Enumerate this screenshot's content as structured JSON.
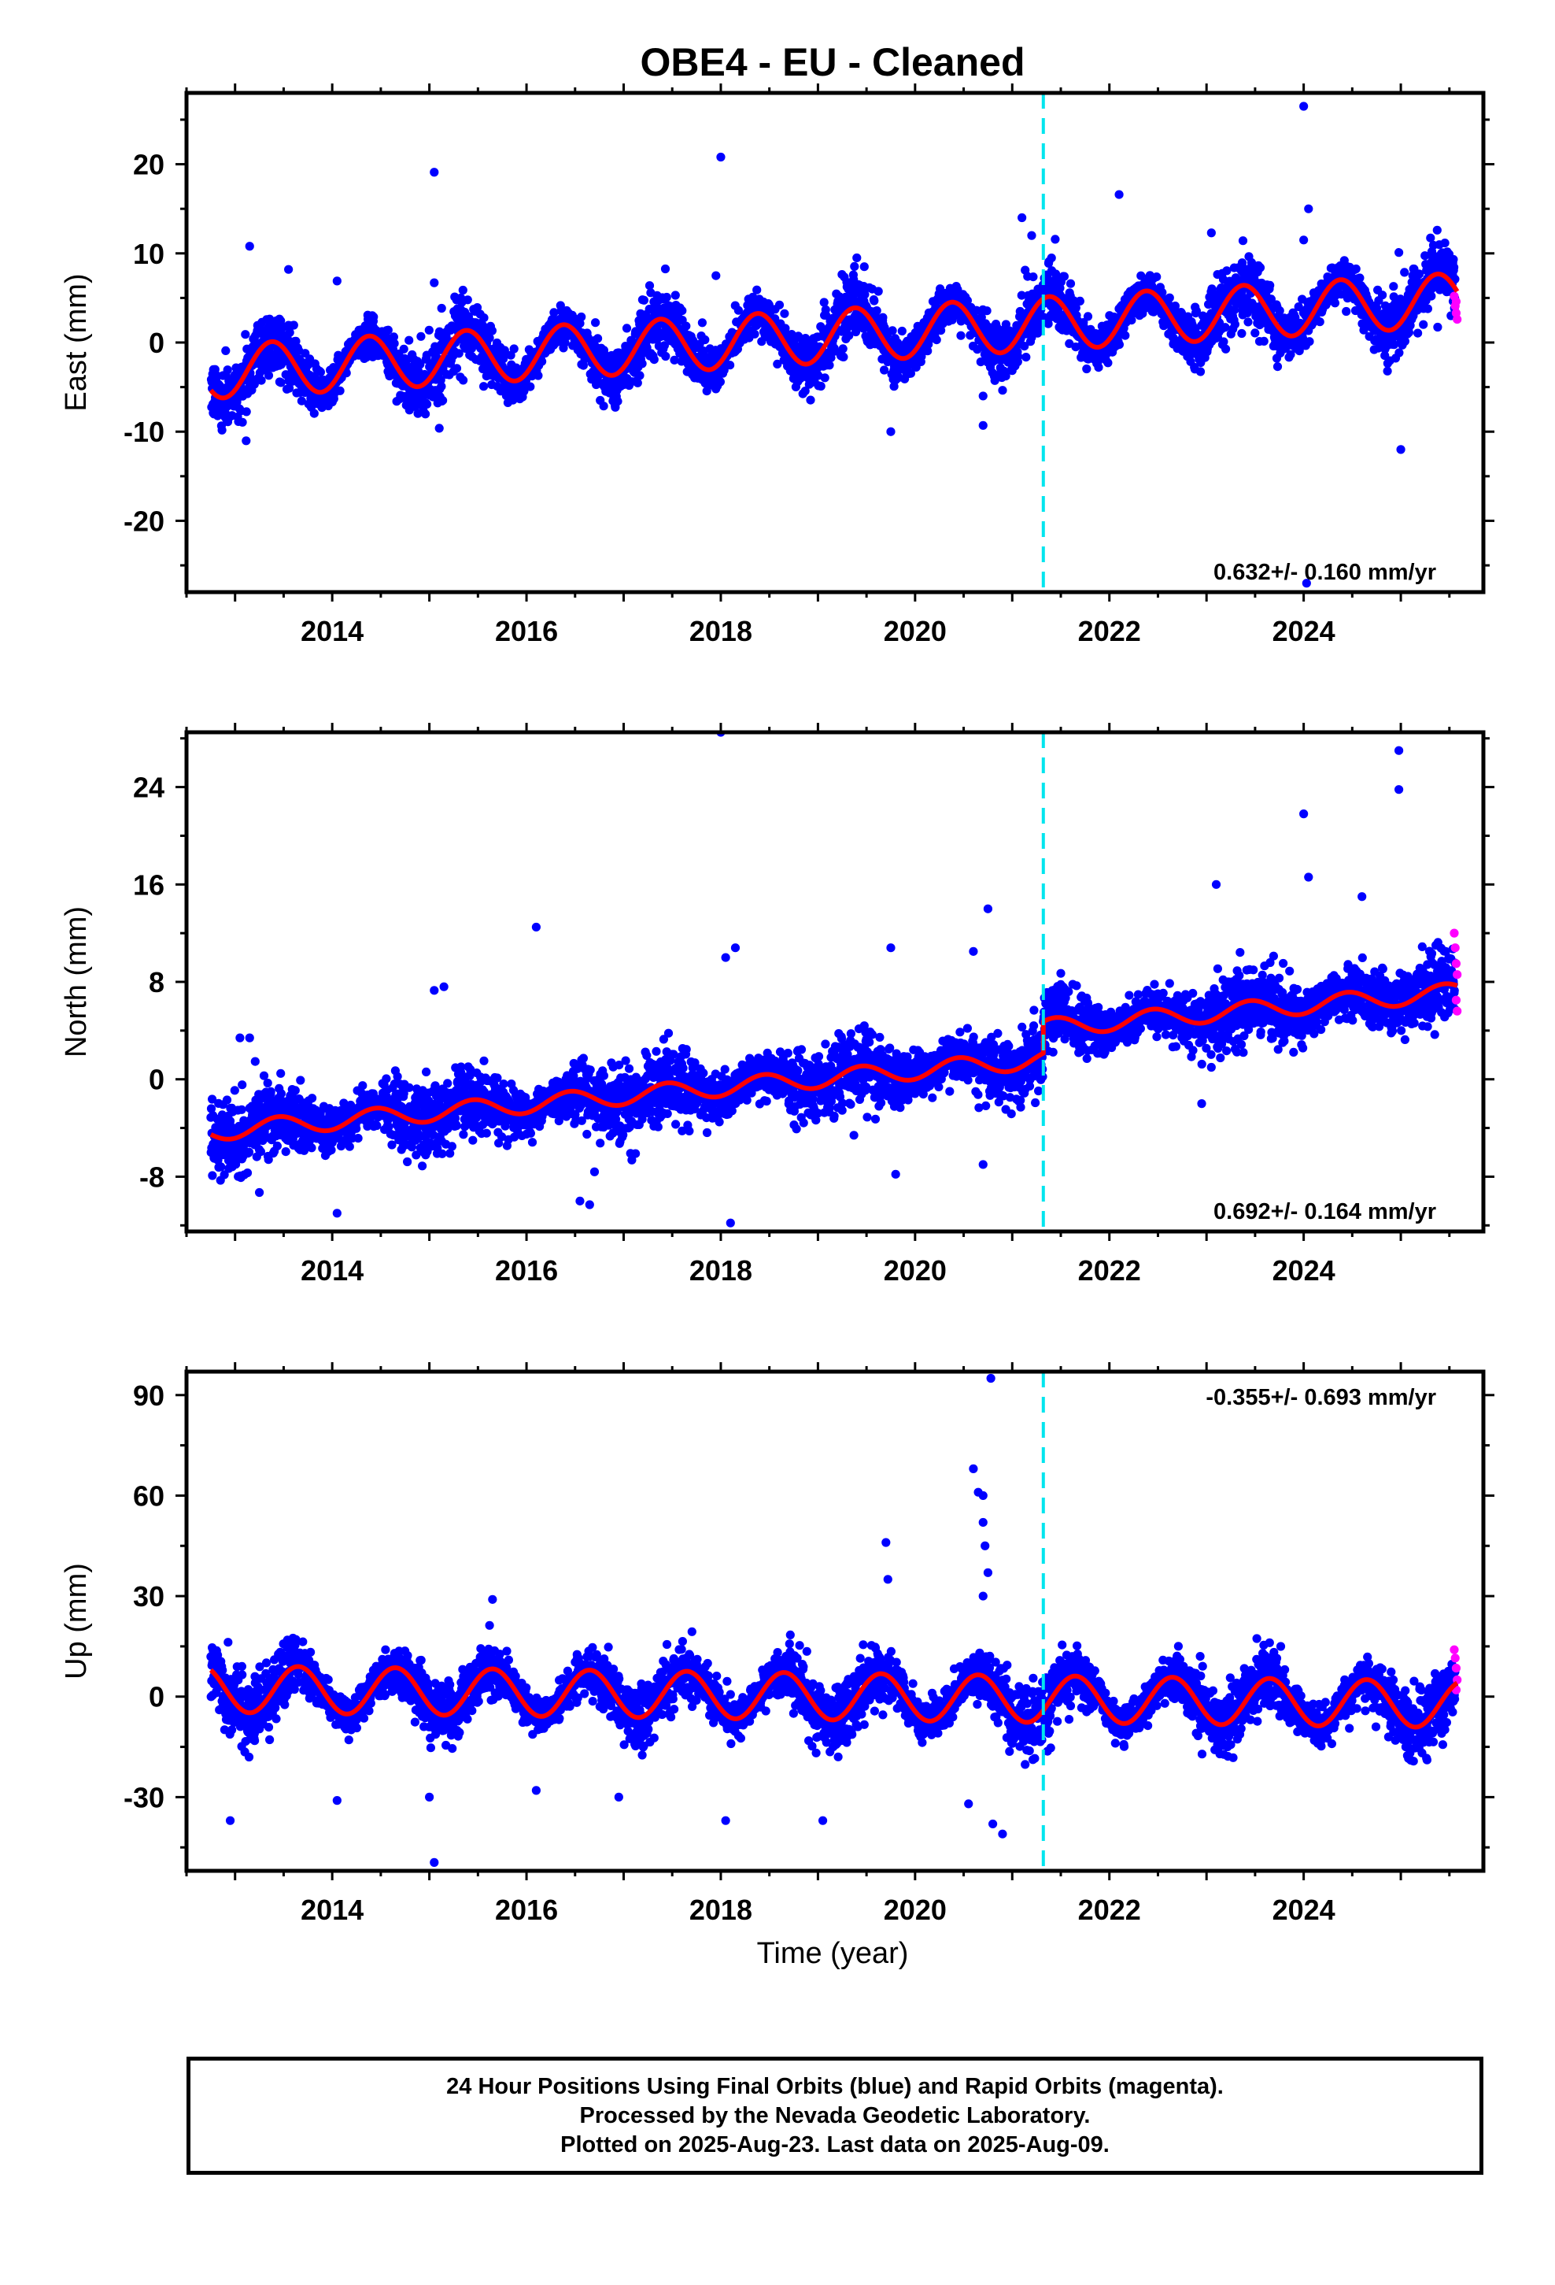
{
  "title": "OBE4  - EU - Cleaned",
  "x_label": "Time (year)",
  "footer": {
    "line1": "24 Hour Positions Using Final Orbits (blue) and Rapid Orbits (magenta).",
    "line2": "Processed by the Nevada Geodetic Laboratory.",
    "line3": "Plotted on 2025-Aug-23. Last data on 2025-Aug-09."
  },
  "colors": {
    "final_orbits": "#0000ff",
    "rapid_orbits": "#ff00ff",
    "model": "#ff0000",
    "equipment_change": "#00e5ee"
  },
  "chart_data": [
    {
      "type": "scatter",
      "component": "East",
      "ylabel": "East (mm)",
      "xlim": [
        2012.5,
        2025.85
      ],
      "ylim": [
        -28,
        28
      ],
      "xticks": [
        2014,
        2016,
        2018,
        2020,
        2022,
        2024
      ],
      "yticks": [
        -20,
        -10,
        0,
        10,
        20
      ],
      "rate_text": "0.632+/- 0.160 mm/yr",
      "rate_position": "bottom-right",
      "equipment_change_x": 2021.32,
      "data_start": 2012.75,
      "data_end": 2025.58,
      "model": {
        "intercept_at_2012_75": -3.3,
        "rate": 0.632,
        "step_at_change": 0,
        "amplitude": 3.0,
        "peak_phase_year": 0.38
      },
      "scatter_spread": 1.9,
      "outliers": [
        {
          "x": 2013.15,
          "y": 10.8
        },
        {
          "x": 2013.55,
          "y": 8.2
        },
        {
          "x": 2014.05,
          "y": 6.9
        },
        {
          "x": 2015.05,
          "y": 19.1
        },
        {
          "x": 2015.05,
          "y": 6.7
        },
        {
          "x": 2018.0,
          "y": 20.8
        },
        {
          "x": 2017.95,
          "y": 7.5
        },
        {
          "x": 2019.75,
          "y": -10.0
        },
        {
          "x": 2020.7,
          "y": -9.3
        },
        {
          "x": 2020.7,
          "y": -6.0
        },
        {
          "x": 2021.1,
          "y": 14.0
        },
        {
          "x": 2021.2,
          "y": 12.0
        },
        {
          "x": 2022.1,
          "y": 16.6
        },
        {
          "x": 2023.05,
          "y": 12.3
        },
        {
          "x": 2024.0,
          "y": 26.5
        },
        {
          "x": 2024.05,
          "y": 15.0
        },
        {
          "x": 2024.0,
          "y": 11.5
        },
        {
          "x": 2024.03,
          "y": -27.0
        },
        {
          "x": 2025.0,
          "y": -12.0
        },
        {
          "x": 2024.98,
          "y": 10.1
        },
        {
          "x": 2019.4,
          "y": 9.5
        }
      ],
      "rapid_points": [
        {
          "x": 2025.55,
          "y": 5.2
        },
        {
          "x": 2025.56,
          "y": 4.1
        },
        {
          "x": 2025.57,
          "y": 3.3
        },
        {
          "x": 2025.58,
          "y": 2.6
        },
        {
          "x": 2025.57,
          "y": 4.6
        }
      ]
    },
    {
      "type": "scatter",
      "component": "North",
      "ylabel": "North (mm)",
      "xlim": [
        2012.5,
        2025.85
      ],
      "ylim": [
        -12.5,
        28.5
      ],
      "xticks": [
        2014,
        2016,
        2018,
        2020,
        2022,
        2024
      ],
      "yticks": [
        -8,
        0,
        8,
        16,
        24
      ],
      "rate_text": "0.692+/- 0.164 mm/yr",
      "rate_position": "bottom-right",
      "equipment_change_x": 2021.32,
      "data_start": 2012.75,
      "data_end": 2025.58,
      "model": {
        "intercept_at_2012_75": -4.3,
        "rate": 0.692,
        "step_at_change": 2.6,
        "amplitude": 0.75,
        "peak_phase_year": 0.45
      },
      "scatter_spread": 1.6,
      "outliers": [
        {
          "x": 2012.85,
          "y": -8.3
        },
        {
          "x": 2013.05,
          "y": 3.4
        },
        {
          "x": 2013.15,
          "y": 3.4
        },
        {
          "x": 2013.25,
          "y": -9.3
        },
        {
          "x": 2014.05,
          "y": -11.0
        },
        {
          "x": 2015.05,
          "y": 7.3
        },
        {
          "x": 2015.15,
          "y": 7.6
        },
        {
          "x": 2016.1,
          "y": 12.5
        },
        {
          "x": 2016.55,
          "y": -10.0
        },
        {
          "x": 2016.65,
          "y": -10.3
        },
        {
          "x": 2016.7,
          "y": -7.6
        },
        {
          "x": 2018.0,
          "y": 28.5
        },
        {
          "x": 2018.05,
          "y": 10.0
        },
        {
          "x": 2018.15,
          "y": 10.8
        },
        {
          "x": 2018.1,
          "y": -11.8
        },
        {
          "x": 2019.75,
          "y": 10.8
        },
        {
          "x": 2019.8,
          "y": -7.8
        },
        {
          "x": 2020.6,
          "y": 10.5
        },
        {
          "x": 2020.75,
          "y": 14.0
        },
        {
          "x": 2020.7,
          "y": -7.0
        },
        {
          "x": 2023.1,
          "y": 16.0
        },
        {
          "x": 2024.0,
          "y": 21.8
        },
        {
          "x": 2024.05,
          "y": 16.6
        },
        {
          "x": 2024.6,
          "y": 15.0
        },
        {
          "x": 2024.98,
          "y": 27.0
        },
        {
          "x": 2024.98,
          "y": 23.8
        },
        {
          "x": 2022.95,
          "y": -2.0
        },
        {
          "x": 2021.5,
          "y": 8.7
        }
      ],
      "rapid_points": [
        {
          "x": 2025.55,
          "y": 12.0
        },
        {
          "x": 2025.56,
          "y": 10.8
        },
        {
          "x": 2025.57,
          "y": 9.5
        },
        {
          "x": 2025.58,
          "y": 8.6
        },
        {
          "x": 2025.57,
          "y": 6.5
        },
        {
          "x": 2025.58,
          "y": 5.6
        }
      ]
    },
    {
      "type": "scatter",
      "component": "Up",
      "ylabel": "Up (mm)",
      "xlim": [
        2012.5,
        2025.85
      ],
      "ylim": [
        -52,
        97
      ],
      "xticks": [
        2014,
        2016,
        2018,
        2020,
        2022,
        2024
      ],
      "yticks": [
        -30,
        0,
        30,
        60,
        90
      ],
      "rate_text": "-0.355+/- 0.693 mm/yr",
      "rate_position": "top-right",
      "equipment_change_x": 2021.32,
      "data_start": 2012.75,
      "data_end": 2025.58,
      "model": {
        "intercept_at_2012_75": 2.3,
        "rate": -0.355,
        "step_at_change": 0,
        "amplitude": 7.0,
        "peak_phase_year": 0.65
      },
      "scatter_spread": 5.0,
      "outliers": [
        {
          "x": 2012.95,
          "y": -37.0
        },
        {
          "x": 2014.05,
          "y": -31.0
        },
        {
          "x": 2015.05,
          "y": -49.5
        },
        {
          "x": 2015.0,
          "y": -30.0
        },
        {
          "x": 2016.1,
          "y": -28.0
        },
        {
          "x": 2016.95,
          "y": -30.0
        },
        {
          "x": 2018.05,
          "y": -37.0
        },
        {
          "x": 2019.05,
          "y": -37.0
        },
        {
          "x": 2019.7,
          "y": 46.0
        },
        {
          "x": 2019.72,
          "y": 35.0
        },
        {
          "x": 2020.6,
          "y": 68.0
        },
        {
          "x": 2020.65,
          "y": 61.0
        },
        {
          "x": 2020.7,
          "y": 60.0
        },
        {
          "x": 2020.7,
          "y": 52.0
        },
        {
          "x": 2020.72,
          "y": 45.0
        },
        {
          "x": 2020.75,
          "y": 37.0
        },
        {
          "x": 2020.78,
          "y": 95.0
        },
        {
          "x": 2020.7,
          "y": 30.0
        },
        {
          "x": 2020.8,
          "y": -38.0
        },
        {
          "x": 2020.9,
          "y": -41.0
        },
        {
          "x": 2020.55,
          "y": -32.0
        },
        {
          "x": 2015.65,
          "y": 29.0
        }
      ],
      "rapid_points": [
        {
          "x": 2025.55,
          "y": 14.0
        },
        {
          "x": 2025.56,
          "y": 11.5
        },
        {
          "x": 2025.57,
          "y": 8.5
        },
        {
          "x": 2025.58,
          "y": 5.0
        },
        {
          "x": 2025.57,
          "y": 2.0
        }
      ]
    }
  ]
}
